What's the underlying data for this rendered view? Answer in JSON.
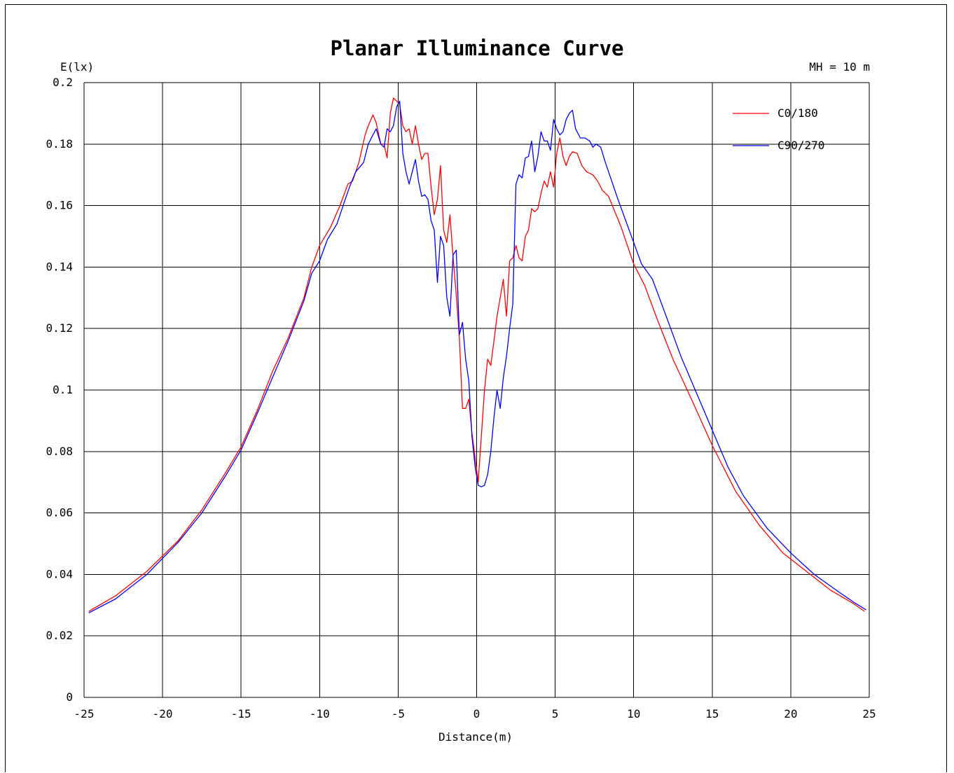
{
  "chart_data": {
    "type": "line",
    "title": "Planar Illuminance Curve",
    "ylabel": "E(lx)",
    "xlabel": "Distance(m)",
    "annotation": "MH = 10 m",
    "xlim": [
      -25,
      25
    ],
    "ylim": [
      0,
      0.2
    ],
    "x_ticks": [
      "-25",
      "-20",
      "-15",
      "-10",
      "-5",
      "0",
      "5",
      "10",
      "15",
      "20",
      "25"
    ],
    "y_ticks": [
      "0",
      "0.02",
      "0.04",
      "0.06",
      "0.08",
      "0.1",
      "0.12",
      "0.14",
      "0.16",
      "0.18",
      "0.2"
    ],
    "grid": true,
    "legend_position": "top-right",
    "series": [
      {
        "name": "C0/180",
        "color": "#ff0000",
        "points": [
          [
            -24.7,
            0.028
          ],
          [
            -23,
            0.033
          ],
          [
            -21,
            0.041
          ],
          [
            -19,
            0.051
          ],
          [
            -17.5,
            0.061
          ],
          [
            -16,
            0.073
          ],
          [
            -15,
            0.0815
          ],
          [
            -14,
            0.093
          ],
          [
            -13,
            0.106
          ],
          [
            -12,
            0.117
          ],
          [
            -11,
            0.13
          ],
          [
            -10.5,
            0.14
          ],
          [
            -10,
            0.147
          ],
          [
            -9.3,
            0.153
          ],
          [
            -8.7,
            0.16
          ],
          [
            -8.2,
            0.167
          ],
          [
            -7.9,
            0.168
          ],
          [
            -7.5,
            0.174
          ],
          [
            -7.1,
            0.183
          ],
          [
            -6.9,
            0.186
          ],
          [
            -6.6,
            0.1895
          ],
          [
            -6.4,
            0.187
          ],
          [
            -6.1,
            0.18
          ],
          [
            -5.9,
            0.18
          ],
          [
            -5.7,
            0.1755
          ],
          [
            -5.5,
            0.19
          ],
          [
            -5.3,
            0.195
          ],
          [
            -5.1,
            0.194
          ],
          [
            -4.9,
            0.193
          ],
          [
            -4.7,
            0.186
          ],
          [
            -4.5,
            0.184
          ],
          [
            -4.3,
            0.185
          ],
          [
            -4.1,
            0.18
          ],
          [
            -3.9,
            0.186
          ],
          [
            -3.7,
            0.18
          ],
          [
            -3.5,
            0.175
          ],
          [
            -3.3,
            0.177
          ],
          [
            -3.1,
            0.177
          ],
          [
            -2.9,
            0.166
          ],
          [
            -2.7,
            0.157
          ],
          [
            -2.5,
            0.162
          ],
          [
            -2.3,
            0.173
          ],
          [
            -2.1,
            0.152
          ],
          [
            -1.9,
            0.148
          ],
          [
            -1.7,
            0.157
          ],
          [
            -1.5,
            0.143
          ],
          [
            -1.3,
            0.131
          ],
          [
            -1.1,
            0.117
          ],
          [
            -0.9,
            0.094
          ],
          [
            -0.7,
            0.094
          ],
          [
            -0.5,
            0.097
          ],
          [
            -0.3,
            0.086
          ],
          [
            -0.1,
            0.078
          ],
          [
            0.1,
            0.07
          ],
          [
            0.3,
            0.085
          ],
          [
            0.5,
            0.1
          ],
          [
            0.7,
            0.11
          ],
          [
            0.9,
            0.108
          ],
          [
            1.1,
            0.116
          ],
          [
            1.3,
            0.124
          ],
          [
            1.5,
            0.13
          ],
          [
            1.7,
            0.136
          ],
          [
            1.9,
            0.124
          ],
          [
            2.1,
            0.142
          ],
          [
            2.3,
            0.143
          ],
          [
            2.5,
            0.147
          ],
          [
            2.7,
            0.143
          ],
          [
            2.9,
            0.142
          ],
          [
            3.1,
            0.15
          ],
          [
            3.3,
            0.152
          ],
          [
            3.5,
            0.159
          ],
          [
            3.7,
            0.158
          ],
          [
            3.9,
            0.159
          ],
          [
            4.1,
            0.164
          ],
          [
            4.3,
            0.168
          ],
          [
            4.5,
            0.166
          ],
          [
            4.7,
            0.171
          ],
          [
            4.9,
            0.166
          ],
          [
            5.1,
            0.177
          ],
          [
            5.3,
            0.182
          ],
          [
            5.5,
            0.176
          ],
          [
            5.7,
            0.173
          ],
          [
            5.9,
            0.176
          ],
          [
            6.1,
            0.1775
          ],
          [
            6.4,
            0.177
          ],
          [
            6.7,
            0.173
          ],
          [
            7.0,
            0.171
          ],
          [
            7.4,
            0.17
          ],
          [
            7.7,
            0.168
          ],
          [
            8.0,
            0.165
          ],
          [
            8.4,
            0.163
          ],
          [
            8.8,
            0.158
          ],
          [
            9.2,
            0.153
          ],
          [
            9.6,
            0.147
          ],
          [
            10,
            0.141
          ],
          [
            10.7,
            0.134
          ],
          [
            11.5,
            0.123
          ],
          [
            12.5,
            0.11
          ],
          [
            13.5,
            0.099
          ],
          [
            15,
            0.082
          ],
          [
            16.5,
            0.067
          ],
          [
            18,
            0.056
          ],
          [
            19.5,
            0.047
          ],
          [
            21,
            0.041
          ],
          [
            22.5,
            0.035
          ],
          [
            24,
            0.0305
          ],
          [
            24.7,
            0.028
          ]
        ]
      },
      {
        "name": "C90/270",
        "color": "#0000ff",
        "points": [
          [
            -24.7,
            0.0275
          ],
          [
            -23,
            0.032
          ],
          [
            -21,
            0.04
          ],
          [
            -19,
            0.0505
          ],
          [
            -17.5,
            0.06
          ],
          [
            -16,
            0.072
          ],
          [
            -15,
            0.0805
          ],
          [
            -14,
            0.092
          ],
          [
            -13,
            0.104
          ],
          [
            -12,
            0.116
          ],
          [
            -11,
            0.129
          ],
          [
            -10.5,
            0.138
          ],
          [
            -10,
            0.142
          ],
          [
            -9.5,
            0.149
          ],
          [
            -8.9,
            0.154
          ],
          [
            -8.5,
            0.16
          ],
          [
            -8.1,
            0.166
          ],
          [
            -7.7,
            0.171
          ],
          [
            -7.2,
            0.174
          ],
          [
            -6.9,
            0.18
          ],
          [
            -6.6,
            0.183
          ],
          [
            -6.4,
            0.185
          ],
          [
            -6.1,
            0.18
          ],
          [
            -5.9,
            0.179
          ],
          [
            -5.7,
            0.185
          ],
          [
            -5.5,
            0.184
          ],
          [
            -5.3,
            0.186
          ],
          [
            -5.1,
            0.192
          ],
          [
            -4.9,
            0.194
          ],
          [
            -4.7,
            0.177
          ],
          [
            -4.5,
            0.171
          ],
          [
            -4.3,
            0.167
          ],
          [
            -4.1,
            0.171
          ],
          [
            -3.9,
            0.175
          ],
          [
            -3.7,
            0.168
          ],
          [
            -3.5,
            0.163
          ],
          [
            -3.3,
            0.1635
          ],
          [
            -3.1,
            0.162
          ],
          [
            -2.9,
            0.155
          ],
          [
            -2.7,
            0.152
          ],
          [
            -2.5,
            0.135
          ],
          [
            -2.3,
            0.15
          ],
          [
            -2.1,
            0.147
          ],
          [
            -1.9,
            0.13
          ],
          [
            -1.7,
            0.124
          ],
          [
            -1.5,
            0.144
          ],
          [
            -1.3,
            0.1455
          ],
          [
            -1.1,
            0.118
          ],
          [
            -0.9,
            0.122
          ],
          [
            -0.7,
            0.11
          ],
          [
            -0.5,
            0.103
          ],
          [
            -0.3,
            0.085
          ],
          [
            -0.1,
            0.075
          ],
          [
            0.1,
            0.069
          ],
          [
            0.3,
            0.0685
          ],
          [
            0.5,
            0.069
          ],
          [
            0.7,
            0.0725
          ],
          [
            0.9,
            0.08
          ],
          [
            1.1,
            0.091
          ],
          [
            1.3,
            0.1
          ],
          [
            1.5,
            0.094
          ],
          [
            1.7,
            0.104
          ],
          [
            1.9,
            0.111
          ],
          [
            2.1,
            0.12
          ],
          [
            2.3,
            0.128
          ],
          [
            2.5,
            0.167
          ],
          [
            2.7,
            0.17
          ],
          [
            2.9,
            0.169
          ],
          [
            3.1,
            0.1755
          ],
          [
            3.3,
            0.176
          ],
          [
            3.5,
            0.181
          ],
          [
            3.7,
            0.171
          ],
          [
            3.9,
            0.176
          ],
          [
            4.1,
            0.184
          ],
          [
            4.3,
            0.181
          ],
          [
            4.5,
            0.181
          ],
          [
            4.7,
            0.178
          ],
          [
            4.9,
            0.188
          ],
          [
            5.1,
            0.185
          ],
          [
            5.3,
            0.183
          ],
          [
            5.5,
            0.184
          ],
          [
            5.7,
            0.188
          ],
          [
            5.9,
            0.19
          ],
          [
            6.1,
            0.191
          ],
          [
            6.3,
            0.185
          ],
          [
            6.6,
            0.182
          ],
          [
            6.9,
            0.182
          ],
          [
            7.2,
            0.181
          ],
          [
            7.4,
            0.179
          ],
          [
            7.6,
            0.18
          ],
          [
            7.9,
            0.179
          ],
          [
            8.2,
            0.174
          ],
          [
            8.6,
            0.168
          ],
          [
            9,
            0.162
          ],
          [
            9.5,
            0.155
          ],
          [
            10,
            0.148
          ],
          [
            10.5,
            0.141
          ],
          [
            11.2,
            0.136
          ],
          [
            12,
            0.125
          ],
          [
            13,
            0.111
          ],
          [
            14,
            0.099
          ],
          [
            15,
            0.087
          ],
          [
            16,
            0.075
          ],
          [
            17,
            0.0655
          ],
          [
            18.5,
            0.055
          ],
          [
            20,
            0.047
          ],
          [
            21.5,
            0.04
          ],
          [
            23,
            0.0345
          ],
          [
            24,
            0.031
          ],
          [
            24.8,
            0.0285
          ]
        ]
      }
    ]
  }
}
